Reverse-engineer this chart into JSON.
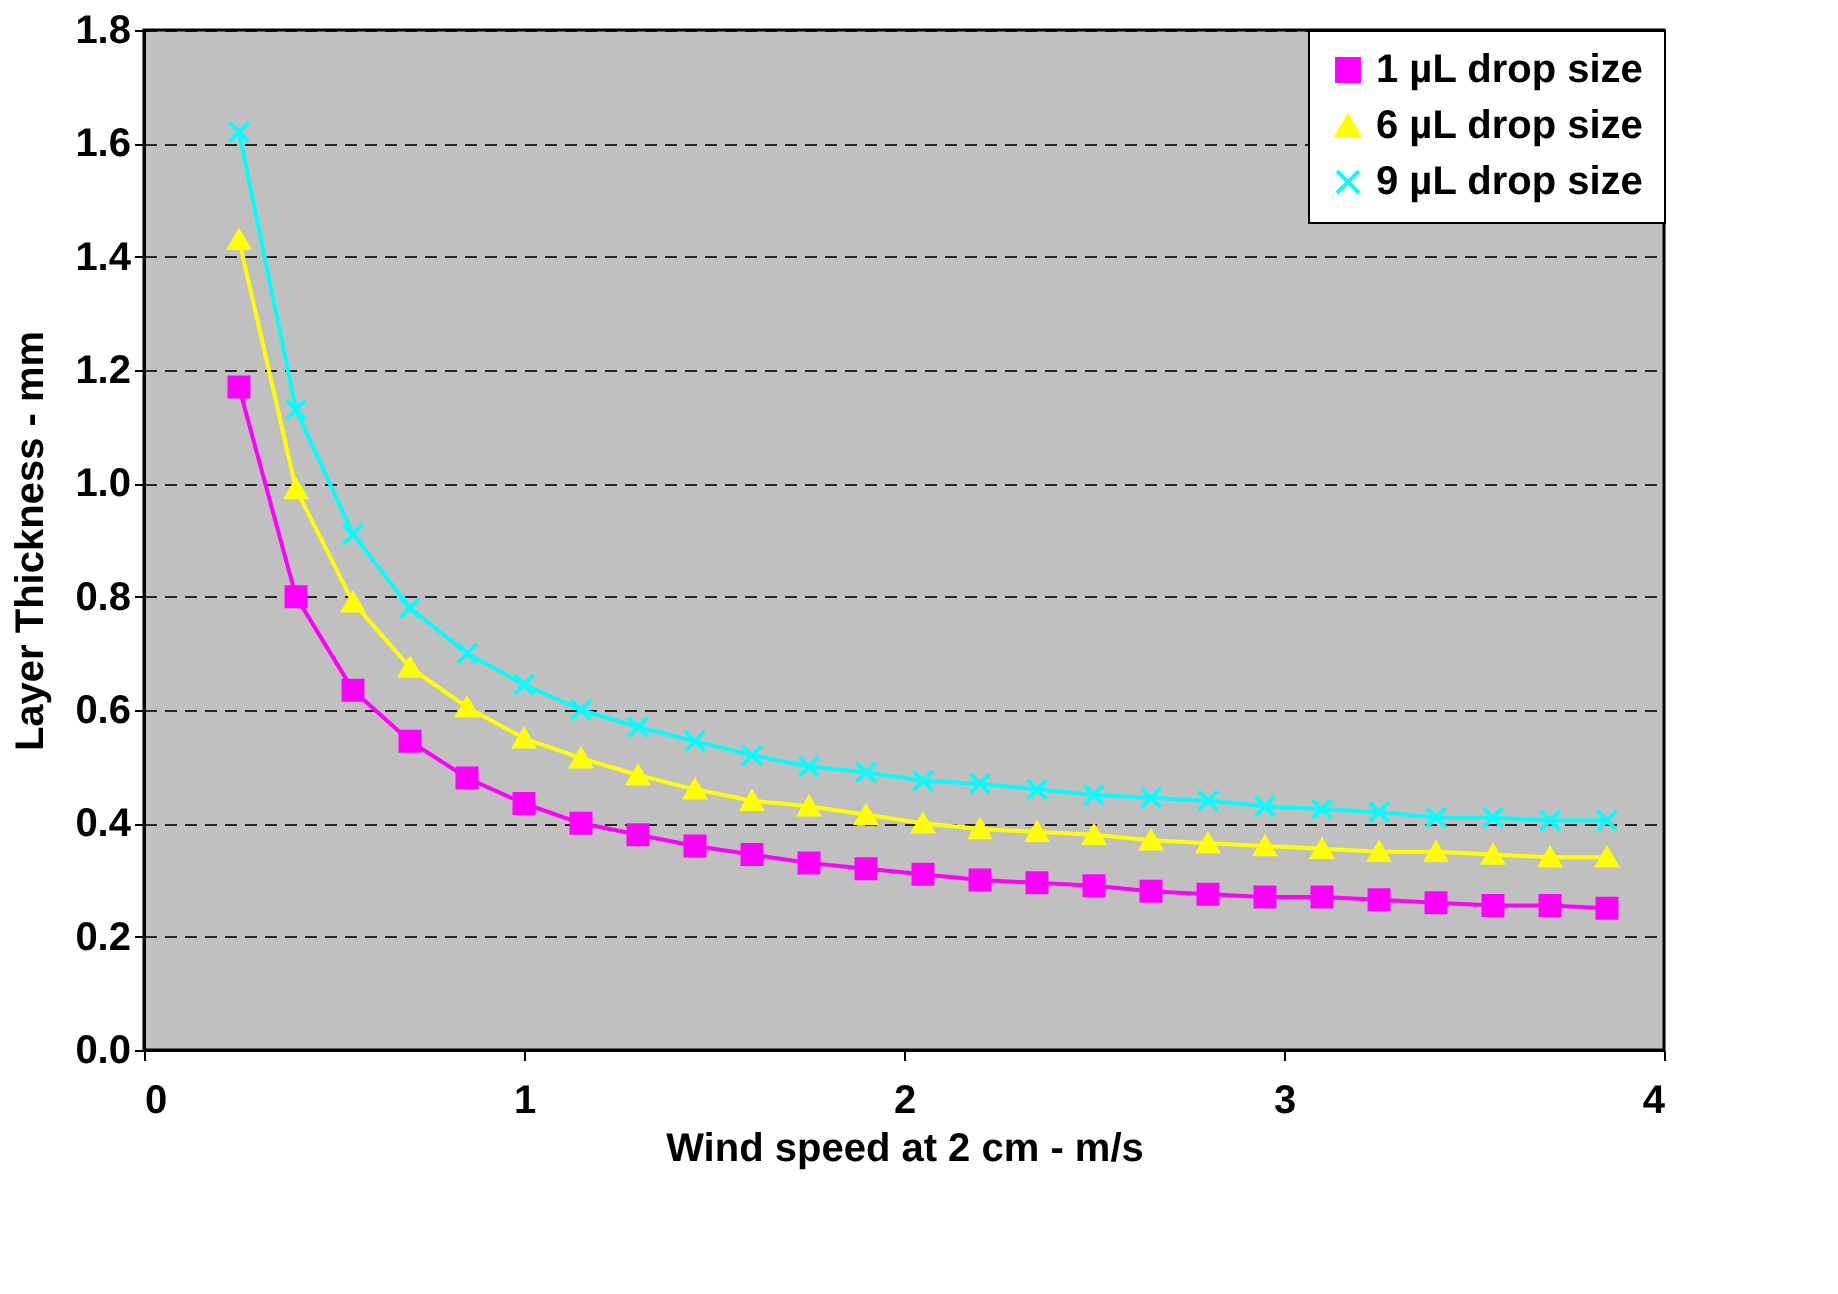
{
  "chart_data": {
    "type": "line",
    "xlabel": "Wind speed at 2 cm - m/s",
    "ylabel": "Layer Thickness -  mm",
    "x": [
      0.25,
      0.4,
      0.55,
      0.7,
      0.85,
      1.0,
      1.15,
      1.3,
      1.45,
      1.6,
      1.75,
      1.9,
      2.05,
      2.2,
      2.35,
      2.5,
      2.65,
      2.8,
      2.95,
      3.1,
      3.25,
      3.4,
      3.55,
      3.7,
      3.85
    ],
    "series": [
      {
        "name": "1 µL drop size",
        "color": "#ff00ff",
        "marker": "square",
        "values": [
          1.17,
          0.8,
          0.635,
          0.545,
          0.48,
          0.435,
          0.4,
          0.38,
          0.36,
          0.345,
          0.33,
          0.32,
          0.31,
          0.3,
          0.295,
          0.29,
          0.28,
          0.275,
          0.27,
          0.27,
          0.265,
          0.26,
          0.255,
          0.255,
          0.25
        ]
      },
      {
        "name": "6 µL drop size",
        "color": "#ffff00",
        "marker": "triangle",
        "values": [
          1.43,
          0.99,
          0.79,
          0.675,
          0.605,
          0.55,
          0.515,
          0.485,
          0.46,
          0.44,
          0.43,
          0.415,
          0.4,
          0.39,
          0.385,
          0.38,
          0.37,
          0.365,
          0.36,
          0.355,
          0.35,
          0.35,
          0.345,
          0.34,
          0.34
        ]
      },
      {
        "name": "9 µL drop size",
        "color": "#00ffff",
        "marker": "cross",
        "values": [
          1.62,
          1.13,
          0.91,
          0.78,
          0.7,
          0.645,
          0.6,
          0.57,
          0.545,
          0.52,
          0.5,
          0.49,
          0.475,
          0.47,
          0.46,
          0.45,
          0.445,
          0.44,
          0.43,
          0.425,
          0.42,
          0.41,
          0.41,
          0.405,
          0.405
        ]
      }
    ],
    "xlim": [
      0,
      4
    ],
    "xticks": [
      0,
      1,
      2,
      3,
      4
    ],
    "ylim": [
      0,
      1.8
    ],
    "yticks": [
      {
        "value": 0,
        "label": "0.0"
      },
      0.2,
      0.4,
      0.6,
      0.8,
      {
        "value": 1,
        "label": "1.0"
      },
      1.2,
      1.4,
      1.6,
      1.8
    ],
    "grid": "y",
    "legend": "top right",
    "line_style": "solid"
  }
}
